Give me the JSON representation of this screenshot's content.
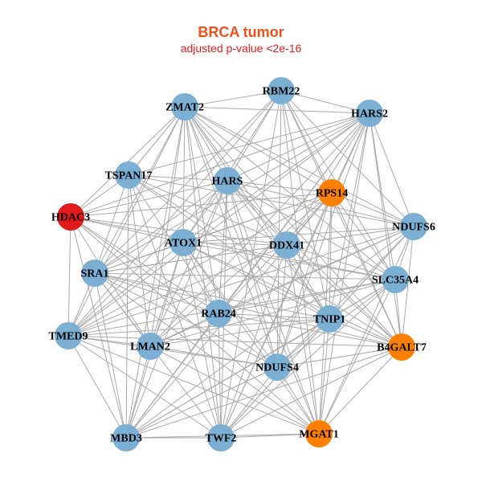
{
  "title": "BRCA tumor",
  "subtitle": "adjusted p-value <2e-16",
  "colors": {
    "default": "#7BAFD4",
    "highlight": "#FF8000",
    "seed": "#E31A1C",
    "edge": "#AAAAAA"
  },
  "nodes": [
    {
      "id": "RBM22",
      "group": "default"
    },
    {
      "id": "ZMAT2",
      "group": "default"
    },
    {
      "id": "HARS2",
      "group": "default"
    },
    {
      "id": "TSPAN17",
      "group": "default"
    },
    {
      "id": "HARS",
      "group": "default"
    },
    {
      "id": "RPS14",
      "group": "highlight"
    },
    {
      "id": "HDAC3",
      "group": "seed"
    },
    {
      "id": "NDUFS6",
      "group": "default"
    },
    {
      "id": "ATOX1",
      "group": "default"
    },
    {
      "id": "DDX41",
      "group": "default"
    },
    {
      "id": "SRA1",
      "group": "default"
    },
    {
      "id": "SLC35A4",
      "group": "default"
    },
    {
      "id": "RAB24",
      "group": "default"
    },
    {
      "id": "TNIP1",
      "group": "default"
    },
    {
      "id": "TMED9",
      "group": "default"
    },
    {
      "id": "LMAN2",
      "group": "default"
    },
    {
      "id": "B4GALT7",
      "group": "highlight"
    },
    {
      "id": "NDUFS4",
      "group": "default"
    },
    {
      "id": "MBD3",
      "group": "default"
    },
    {
      "id": "TWF2",
      "group": "default"
    },
    {
      "id": "MGAT1",
      "group": "highlight"
    }
  ],
  "edge_mode": "dense"
}
